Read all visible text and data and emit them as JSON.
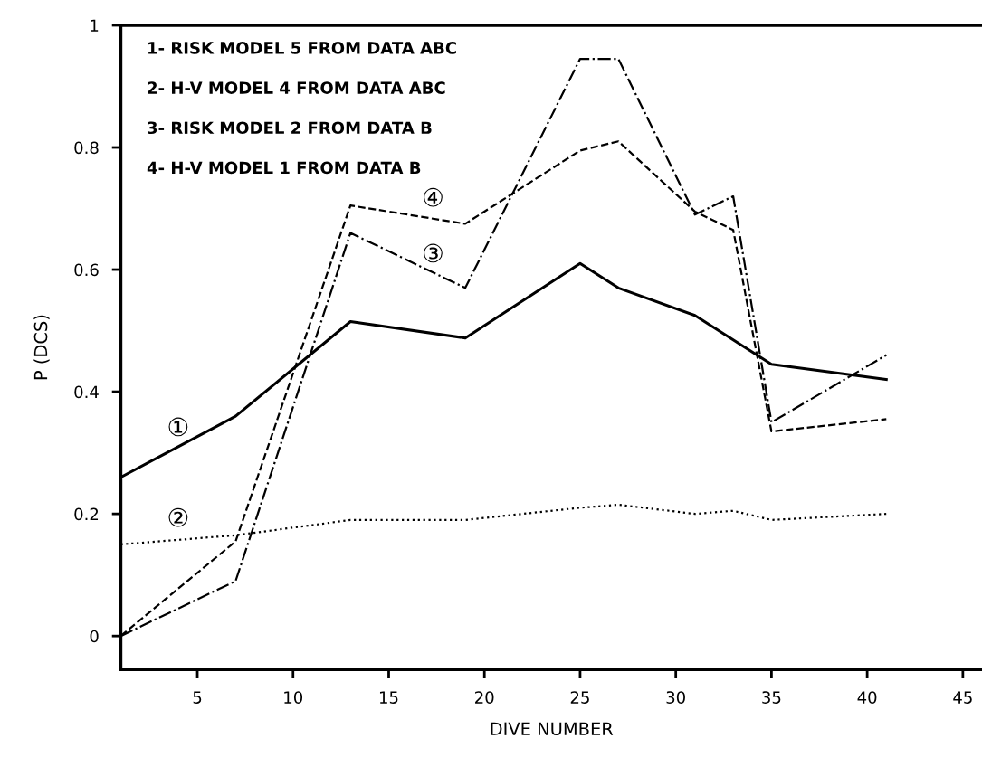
{
  "chart_data": {
    "type": "line",
    "xlabel": "DIVE NUMBER",
    "ylabel": "P (DCS)",
    "xlim": [
      1,
      46
    ],
    "xticks": [
      5,
      10,
      15,
      20,
      25,
      30,
      35,
      40,
      45
    ],
    "ylim": [
      -0.055,
      1
    ],
    "yticks": [
      0,
      0.2,
      0.4,
      0.6,
      0.8,
      1
    ],
    "grid": false,
    "marker": "none",
    "series": [
      {
        "color": "#000000",
        "line_style": "solid",
        "x": [
          1,
          7,
          13,
          19,
          25,
          27,
          31,
          35,
          41
        ],
        "values": [
          0.26,
          0.36,
          0.515,
          0.488,
          0.61,
          0.57,
          0.525,
          0.445,
          0.42
        ]
      },
      {
        "color": "#000000",
        "line_style": "dotted",
        "x": [
          1,
          7,
          13,
          19,
          25,
          27,
          31,
          33,
          35,
          41
        ],
        "values": [
          0.15,
          0.165,
          0.19,
          0.19,
          0.21,
          0.215,
          0.2,
          0.205,
          0.19,
          0.2
        ]
      },
      {
        "color": "#000000",
        "line_style": "dashdot",
        "x": [
          1,
          7,
          13,
          19,
          25,
          27,
          31,
          33,
          35,
          41
        ],
        "values": [
          0,
          0.09,
          0.66,
          0.57,
          0.945,
          0.945,
          0.69,
          0.72,
          0.35,
          0.46
        ]
      },
      {
        "color": "#000000",
        "line_style": "dashed",
        "x": [
          1,
          7,
          13,
          19,
          25,
          27,
          31,
          33,
          35,
          41
        ],
        "values": [
          0,
          0.155,
          0.705,
          0.675,
          0.795,
          0.81,
          0.695,
          0.665,
          0.335,
          0.355
        ]
      }
    ],
    "annotations": [
      "1- RISK MODEL 5 FROM DATA ABC",
      "2- H-V MODEL 4 FROM DATA ABC",
      "3- RISK MODEL 2 FROM DATA B",
      "4- H-V MODEL 1 FROM DATA B",
      "①",
      "②",
      "③",
      "④"
    ]
  }
}
